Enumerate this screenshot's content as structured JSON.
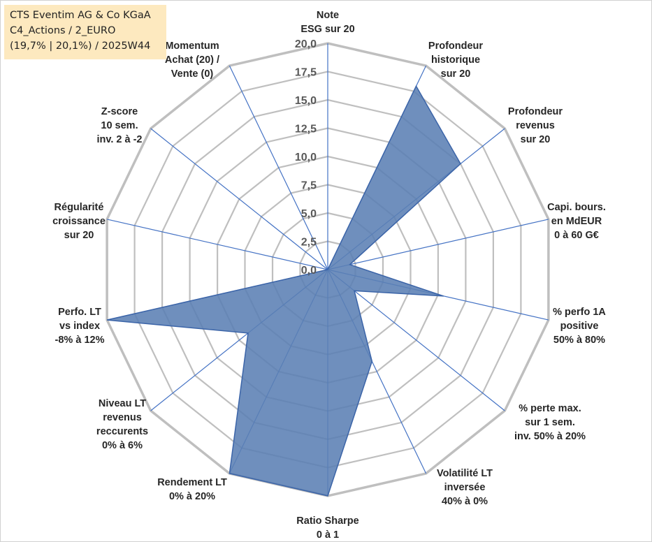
{
  "header": {
    "line1": "CTS Eventim AG & Co KGaA",
    "line2": "C4_Actions / 2_EURO",
    "line3": "(19,7% | 20,1%) / 2025W44"
  },
  "chart_data": {
    "type": "radar",
    "rmin": 0,
    "rmax": 20,
    "tick_labels": [
      "0,0",
      "2,5",
      "5,0",
      "7,5",
      "10,0",
      "12,5",
      "15,0",
      "17,5",
      "20,0"
    ],
    "gridlines": true,
    "legend": "none",
    "axes": [
      {
        "label": [
          "Note",
          "ESG sur 20"
        ],
        "value": 0
      },
      {
        "label": [
          "Profondeur",
          "historique",
          "sur 20"
        ],
        "value": 18
      },
      {
        "label": [
          "Profondeur",
          "revenus",
          "sur 20"
        ],
        "value": 15
      },
      {
        "label": [
          "Capi. bours.",
          "en MdEUR",
          "0 à 60 G€"
        ],
        "value": 2
      },
      {
        "label": [
          "% perfo 1A",
          "positive",
          "50% à 80%"
        ],
        "value": 10.5
      },
      {
        "label": [
          "% perte max.",
          "sur 1 sem.",
          "inv. 50% à 20%"
        ],
        "value": 3
      },
      {
        "label": [
          "Volatilité LT",
          "inversée",
          "40% à 0%"
        ],
        "value": 9
      },
      {
        "label": [
          "Ratio Sharpe",
          "0 à 1"
        ],
        "value": 20
      },
      {
        "label": [
          "Rendement LT",
          "0% à 20%"
        ],
        "value": 20
      },
      {
        "label": [
          "Niveau LT",
          "revenus",
          "reccurents",
          "0% à 6%"
        ],
        "value": 9
      },
      {
        "label": [
          "Perfo. LT",
          "vs index",
          "-8% à 12%"
        ],
        "value": 20
      },
      {
        "label": [
          "Régularité",
          "croissance",
          "sur 20"
        ],
        "value": 0
      },
      {
        "label": [
          "Z-score",
          "10 sem.",
          "inv. 2 à -2"
        ],
        "value": 0
      },
      {
        "label": [
          "Momentum",
          "Achat (20) /",
          "Vente (0)"
        ],
        "value": 0
      }
    ],
    "colors": {
      "fill": "#5b80b4",
      "stroke": "#3b64a8",
      "spoke": "#4472c4",
      "grid": "#bfbfbf"
    }
  }
}
